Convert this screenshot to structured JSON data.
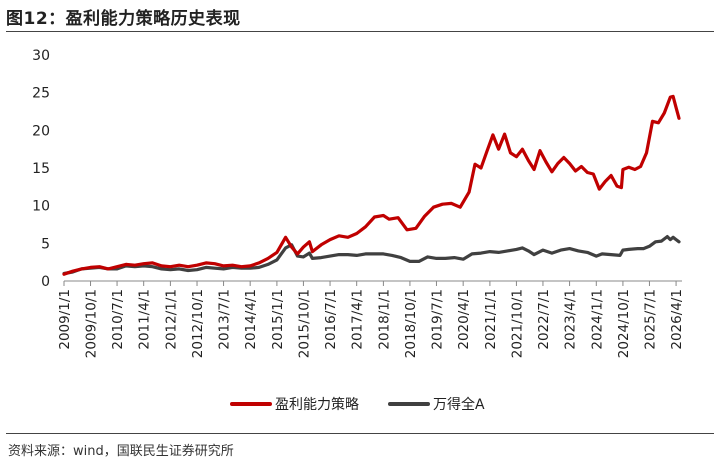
{
  "title": "图12：盈利能力策略历史表现",
  "source": "资料来源：wind，国联民生证券研究所",
  "chart_data": {
    "type": "line",
    "title": "",
    "xlabel": "",
    "ylabel": "",
    "ylim": [
      0,
      30
    ],
    "yticks": [
      0,
      5,
      10,
      15,
      20,
      25,
      30
    ],
    "grid": false,
    "legend_position": "bottom",
    "x_tick_labels": [
      "2009/1/1",
      "2009/10/1",
      "2010/7/1",
      "2011/4/1",
      "2012/1/1",
      "2012/10/1",
      "2013/7/1",
      "2014/4/1",
      "2015/1/1",
      "2015/10/1",
      "2016/7/1",
      "2017/4/1",
      "2018/1/1",
      "2018/10/1",
      "2019/7/1",
      "2020/4/1",
      "2021/1/1",
      "2021/10/1",
      "2022/7/1",
      "2023/4/1",
      "2024/1/1",
      "2024/10/1",
      "2025/7/1",
      "2026/4/1"
    ],
    "x_range": [
      "2009/1/1",
      "2026/6/1"
    ],
    "series": [
      {
        "name": "盈利能力策略",
        "color": "#C00000",
        "points": [
          [
            "2009/1/1",
            0.9
          ],
          [
            "2009/4/1",
            1.3
          ],
          [
            "2009/7/1",
            1.6
          ],
          [
            "2009/10/1",
            1.8
          ],
          [
            "2010/1/1",
            1.9
          ],
          [
            "2010/4/1",
            1.6
          ],
          [
            "2010/7/1",
            1.9
          ],
          [
            "2010/10/1",
            2.2
          ],
          [
            "2011/1/1",
            2.1
          ],
          [
            "2011/4/1",
            2.3
          ],
          [
            "2011/7/1",
            2.4
          ],
          [
            "2011/10/1",
            2.0
          ],
          [
            "2012/1/1",
            1.9
          ],
          [
            "2012/4/1",
            2.1
          ],
          [
            "2012/7/1",
            1.9
          ],
          [
            "2012/10/1",
            2.1
          ],
          [
            "2013/1/1",
            2.4
          ],
          [
            "2013/4/1",
            2.3
          ],
          [
            "2013/7/1",
            2.0
          ],
          [
            "2013/10/1",
            2.1
          ],
          [
            "2014/1/1",
            1.9
          ],
          [
            "2014/4/1",
            2.0
          ],
          [
            "2014/7/1",
            2.4
          ],
          [
            "2014/10/1",
            3.0
          ],
          [
            "2015/1/1",
            3.8
          ],
          [
            "2015/4/1",
            5.8
          ],
          [
            "2015/6/1",
            4.5
          ],
          [
            "2015/8/1",
            3.6
          ],
          [
            "2015/10/1",
            4.5
          ],
          [
            "2015/12/1",
            5.2
          ],
          [
            "2016/1/1",
            3.9
          ],
          [
            "2016/4/1",
            4.8
          ],
          [
            "2016/7/1",
            5.5
          ],
          [
            "2016/10/1",
            6.0
          ],
          [
            "2017/1/1",
            5.8
          ],
          [
            "2017/4/1",
            6.3
          ],
          [
            "2017/7/1",
            7.2
          ],
          [
            "2017/10/1",
            8.5
          ],
          [
            "2018/1/1",
            8.7
          ],
          [
            "2018/3/1",
            8.2
          ],
          [
            "2018/6/1",
            8.4
          ],
          [
            "2018/9/1",
            6.8
          ],
          [
            "2018/12/1",
            7.0
          ],
          [
            "2019/3/1",
            8.6
          ],
          [
            "2019/6/1",
            9.8
          ],
          [
            "2019/9/1",
            10.2
          ],
          [
            "2019/12/1",
            10.3
          ],
          [
            "2020/3/1",
            9.8
          ],
          [
            "2020/6/1",
            11.8
          ],
          [
            "2020/8/1",
            15.5
          ],
          [
            "2020/10/1",
            15.0
          ],
          [
            "2020/12/1",
            17.2
          ],
          [
            "2021/2/1",
            19.4
          ],
          [
            "2021/4/1",
            17.5
          ],
          [
            "2021/6/1",
            19.5
          ],
          [
            "2021/8/1",
            17.0
          ],
          [
            "2021/10/1",
            16.5
          ],
          [
            "2021/12/1",
            17.5
          ],
          [
            "2022/2/1",
            16.0
          ],
          [
            "2022/4/1",
            14.8
          ],
          [
            "2022/6/1",
            17.3
          ],
          [
            "2022/8/1",
            15.8
          ],
          [
            "2022/10/1",
            14.5
          ],
          [
            "2022/12/1",
            15.6
          ],
          [
            "2023/2/1",
            16.4
          ],
          [
            "2023/4/1",
            15.6
          ],
          [
            "2023/6/1",
            14.6
          ],
          [
            "2023/8/1",
            15.2
          ],
          [
            "2023/10/1",
            14.4
          ],
          [
            "2023/12/1",
            14.2
          ],
          [
            "2024/2/1",
            12.2
          ],
          [
            "2024/4/1",
            13.2
          ],
          [
            "2024/6/1",
            14.0
          ],
          [
            "2024/8/1",
            12.6
          ],
          [
            "2024/9/15",
            12.4
          ],
          [
            "2024/10/1",
            14.8
          ],
          [
            "2024/12/1",
            15.1
          ],
          [
            "2025/2/1",
            14.8
          ],
          [
            "2025/4/1",
            15.2
          ],
          [
            "2025/6/1",
            17.0
          ],
          [
            "2025/8/1",
            21.2
          ],
          [
            "2025/10/1",
            21.0
          ],
          [
            "2025/12/1",
            22.3
          ],
          [
            "2026/2/1",
            24.4
          ],
          [
            "2026/3/1",
            24.5
          ],
          [
            "2026/4/1",
            23.0
          ],
          [
            "2026/5/1",
            21.6
          ]
        ]
      },
      {
        "name": "万得全A",
        "color": "#404040",
        "points": [
          [
            "2009/1/1",
            1.0
          ],
          [
            "2009/4/1",
            1.2
          ],
          [
            "2009/7/1",
            1.6
          ],
          [
            "2009/10/1",
            1.7
          ],
          [
            "2010/1/1",
            1.8
          ],
          [
            "2010/4/1",
            1.6
          ],
          [
            "2010/7/1",
            1.6
          ],
          [
            "2010/10/1",
            2.0
          ],
          [
            "2011/1/1",
            1.9
          ],
          [
            "2011/4/1",
            2.0
          ],
          [
            "2011/7/1",
            1.9
          ],
          [
            "2011/10/1",
            1.6
          ],
          [
            "2012/1/1",
            1.5
          ],
          [
            "2012/4/1",
            1.6
          ],
          [
            "2012/7/1",
            1.4
          ],
          [
            "2012/10/1",
            1.5
          ],
          [
            "2013/1/1",
            1.8
          ],
          [
            "2013/4/1",
            1.7
          ],
          [
            "2013/7/1",
            1.6
          ],
          [
            "2013/10/1",
            1.8
          ],
          [
            "2014/1/1",
            1.7
          ],
          [
            "2014/4/1",
            1.7
          ],
          [
            "2014/7/1",
            1.8
          ],
          [
            "2014/10/1",
            2.2
          ],
          [
            "2015/1/1",
            2.8
          ],
          [
            "2015/4/1",
            4.4
          ],
          [
            "2015/6/1",
            4.8
          ],
          [
            "2015/8/1",
            3.3
          ],
          [
            "2015/10/1",
            3.2
          ],
          [
            "2015/12/1",
            3.7
          ],
          [
            "2016/1/1",
            3.0
          ],
          [
            "2016/4/1",
            3.1
          ],
          [
            "2016/7/1",
            3.3
          ],
          [
            "2016/10/1",
            3.5
          ],
          [
            "2017/1/1",
            3.5
          ],
          [
            "2017/4/1",
            3.4
          ],
          [
            "2017/7/1",
            3.6
          ],
          [
            "2017/10/1",
            3.6
          ],
          [
            "2018/1/1",
            3.6
          ],
          [
            "2018/4/1",
            3.4
          ],
          [
            "2018/7/1",
            3.1
          ],
          [
            "2018/10/1",
            2.6
          ],
          [
            "2019/1/1",
            2.6
          ],
          [
            "2019/4/1",
            3.2
          ],
          [
            "2019/7/1",
            3.0
          ],
          [
            "2019/10/1",
            3.0
          ],
          [
            "2020/1/1",
            3.1
          ],
          [
            "2020/4/1",
            2.9
          ],
          [
            "2020/7/1",
            3.6
          ],
          [
            "2020/10/1",
            3.7
          ],
          [
            "2021/1/1",
            3.9
          ],
          [
            "2021/4/1",
            3.8
          ],
          [
            "2021/7/1",
            4.0
          ],
          [
            "2021/10/1",
            4.2
          ],
          [
            "2021/12/1",
            4.4
          ],
          [
            "2022/2/1",
            4.0
          ],
          [
            "2022/4/1",
            3.5
          ],
          [
            "2022/7/1",
            4.1
          ],
          [
            "2022/10/1",
            3.7
          ],
          [
            "2023/1/1",
            4.1
          ],
          [
            "2023/4/1",
            4.3
          ],
          [
            "2023/7/1",
            4.0
          ],
          [
            "2023/10/1",
            3.8
          ],
          [
            "2024/1/1",
            3.3
          ],
          [
            "2024/3/1",
            3.6
          ],
          [
            "2024/6/1",
            3.5
          ],
          [
            "2024/9/1",
            3.4
          ],
          [
            "2024/10/1",
            4.1
          ],
          [
            "2024/12/1",
            4.2
          ],
          [
            "2025/3/1",
            4.3
          ],
          [
            "2025/5/1",
            4.3
          ],
          [
            "2025/7/1",
            4.6
          ],
          [
            "2025/9/1",
            5.2
          ],
          [
            "2025/11/1",
            5.3
          ],
          [
            "2026/1/1",
            5.9
          ],
          [
            "2026/2/1",
            5.5
          ],
          [
            "2026/3/1",
            5.8
          ],
          [
            "2026/4/1",
            5.5
          ],
          [
            "2026/5/1",
            5.2
          ]
        ]
      }
    ]
  }
}
